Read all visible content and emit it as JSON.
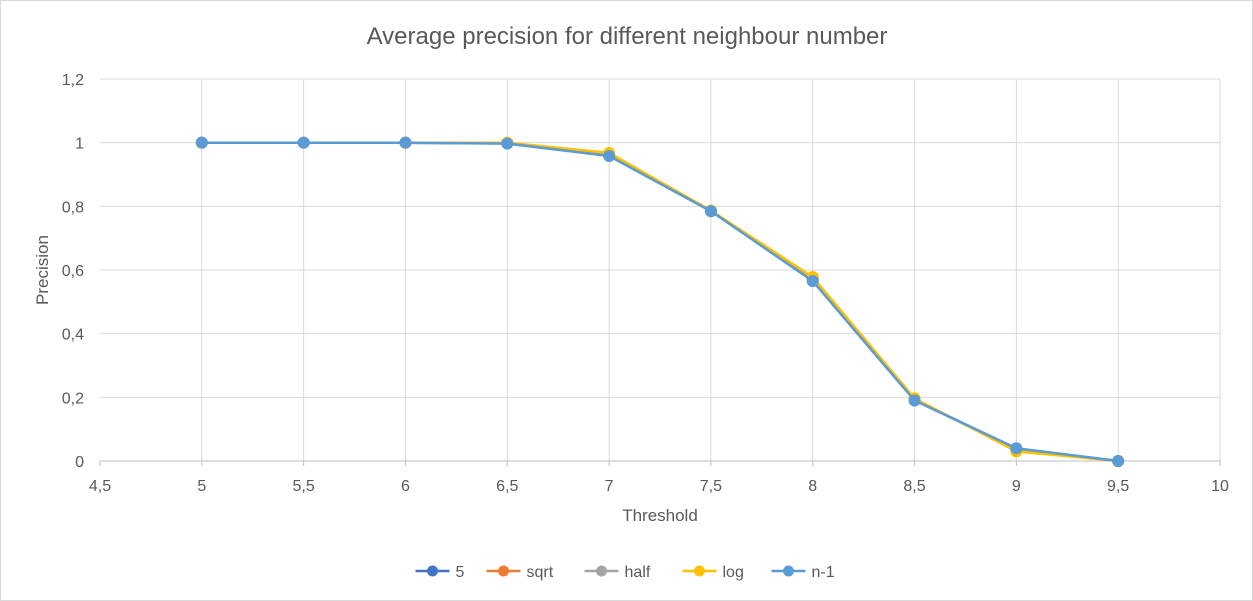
{
  "chart_data": {
    "type": "line",
    "title": "Average precision for different neighbour number",
    "xlabel": "Threshold",
    "ylabel": "Precision",
    "xlim": [
      4.5,
      10
    ],
    "ylim": [
      0,
      1.2
    ],
    "x_ticks": [
      "4,5",
      "5",
      "5,5",
      "6",
      "6,5",
      "7",
      "7,5",
      "8",
      "8,5",
      "9",
      "9,5",
      "10"
    ],
    "y_ticks": [
      "0",
      "0,2",
      "0,4",
      "0,6",
      "0,8",
      "1",
      "1,2"
    ],
    "grid": true,
    "legend_position": "bottom",
    "x": [
      5,
      5.5,
      6,
      6.5,
      7,
      7.5,
      8,
      8.5,
      9,
      9.5
    ],
    "series": [
      {
        "name": "5",
        "color": "#4472c4",
        "values": [
          1,
          1,
          1,
          0.998,
          0.962,
          0.785,
          0.57,
          0.192,
          0.038,
          0
        ]
      },
      {
        "name": "sqrt",
        "color": "#ed7d31",
        "values": [
          1,
          1,
          1,
          0.998,
          0.962,
          0.785,
          0.572,
          0.193,
          0.035,
          0
        ]
      },
      {
        "name": "half",
        "color": "#a5a5a5",
        "values": [
          1,
          1,
          1,
          0.998,
          0.962,
          0.785,
          0.57,
          0.192,
          0.038,
          0
        ]
      },
      {
        "name": "log",
        "color": "#ffc000",
        "values": [
          1,
          1,
          1,
          1.0,
          0.968,
          0.787,
          0.578,
          0.197,
          0.03,
          0
        ]
      },
      {
        "name": "n-1",
        "color": "#5b9bd5",
        "values": [
          1,
          1,
          1,
          0.997,
          0.958,
          0.785,
          0.565,
          0.19,
          0.04,
          0
        ]
      }
    ]
  }
}
